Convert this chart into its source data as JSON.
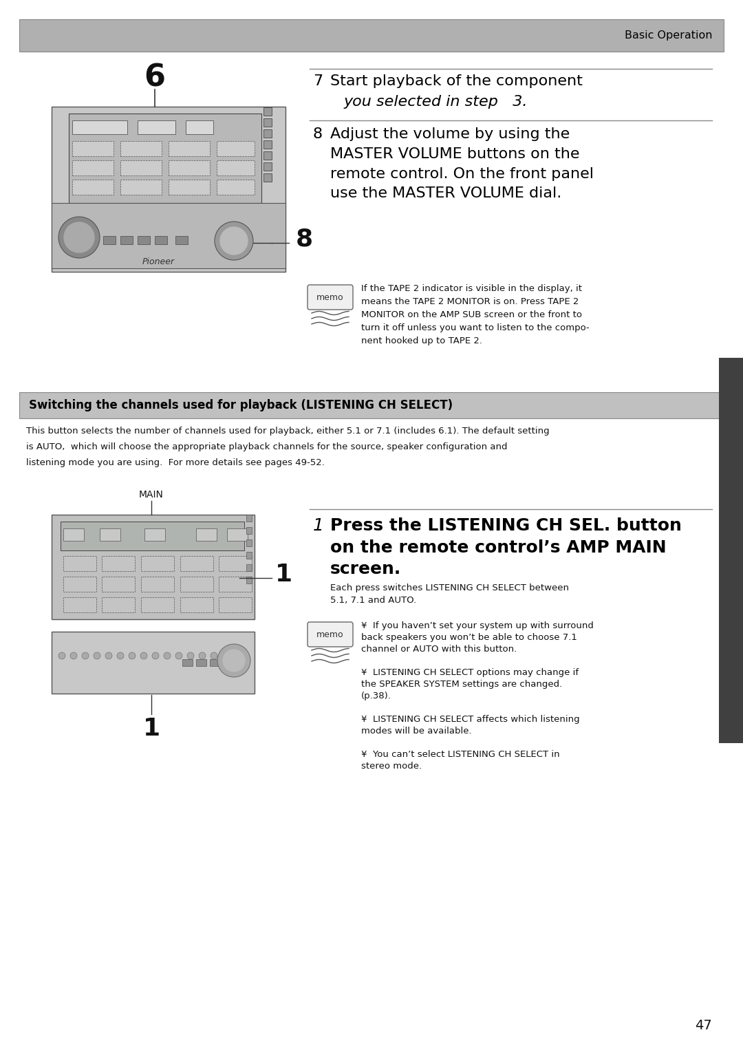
{
  "bg_color": "#ffffff",
  "header_bg": "#b0b0b0",
  "header_text": "Basic Operation",
  "header_text_color": "#000000",
  "section2_bg": "#c0c0c0",
  "section2_text": "Switching the channels used for playback (LISTENING CH SELECT)",
  "section2_text_color": "#000000",
  "page_number": "47",
  "step7_number": "7",
  "step7_line1": "Start playback of the component",
  "step7_line2": "you selected in step   3.",
  "step8_number": "8",
  "step8_text": "Adjust the volume by using the\nMASTER VOLUME buttons on the\nremote control. On the front panel\nuse the MASTER VOLUME dial.",
  "memo1_text": "If the TAPE 2 indicator is visible in the display, it\nmeans the TAPE 2 MONITOR is on. Press TAPE 2\nMONITOR on the AMP SUB screen or the front to\nturn it off unless you want to listen to the compo-\nnent hooked up to TAPE 2.",
  "section2_body_line1": "This button selects the number of channels used for playback, either 5.1 or 7.1 (includes 6.1). The default setting",
  "section2_body_line2": "is AUTO,  which will choose the appropriate playback channels for the source, speaker configuration and",
  "section2_body_line3": "listening mode you are using.  For more details see pages 49-52.",
  "step1a_number": "1",
  "step1a_text": "Press the LISTENING CH SEL. button\non the remote control’s AMP MAIN\nscreen.",
  "step1a_sub_line1": "Each press switches LISTENING CH SELECT between",
  "step1a_sub_line2": "5.1, 7.1 and AUTO.",
  "memo2_line1": "¥  If you haven’t set your system up with surround",
  "memo2_line2": "back speakers you won’t be able to choose 7.1",
  "memo2_line3": "channel or AUTO with this button.",
  "memo2_line4": "¥  LISTENING CH SELECT options may change if",
  "memo2_line5": "the SPEAKER SYSTEM settings are changed.",
  "memo2_line6": "(p.38).",
  "memo2_line7": "¥  LISTENING CH SELECT affects which listening",
  "memo2_line8": "modes will be available.",
  "memo2_line9": "¥  You can’t select LISTENING CH SELECT in",
  "memo2_line10": "stereo mode.",
  "main_label": "MAIN",
  "label_6": "6",
  "label_8": "8",
  "label_1a": "1",
  "label_1b": "1"
}
